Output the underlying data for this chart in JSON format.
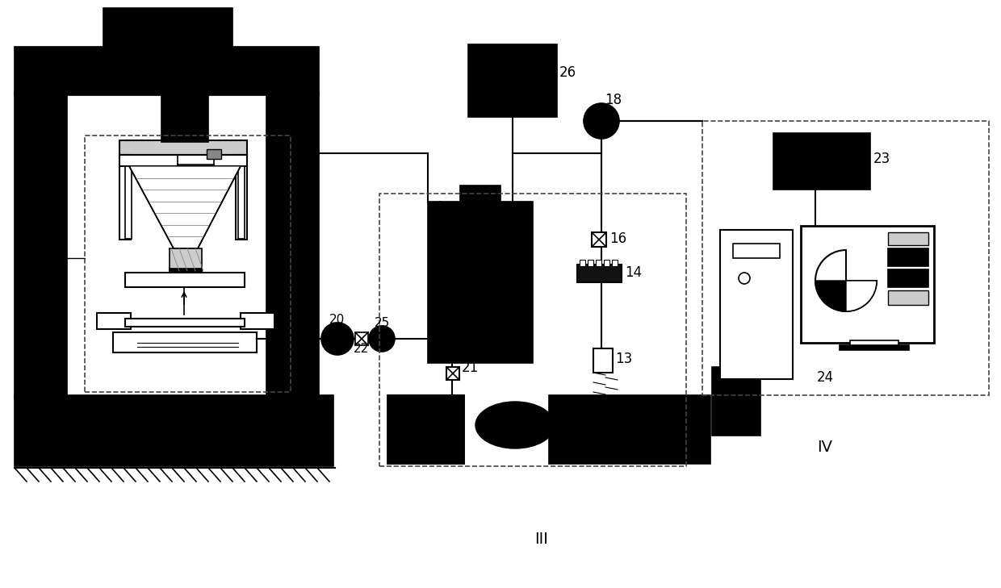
{
  "bg": "#ffffff",
  "black": "#000000",
  "gray": "#888888",
  "light_gray": "#cccccc",
  "dashed_color": "#444444",
  "fig_w": 12.4,
  "fig_h": 7.29,
  "dpi": 100
}
